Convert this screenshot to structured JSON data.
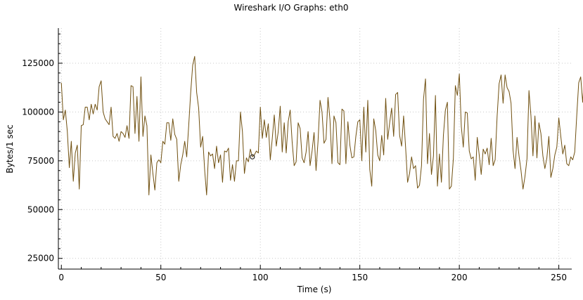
{
  "chart_data": {
    "type": "line",
    "title": "Wireshark I/O Graphs: eth0",
    "xlabel": "Time (s)",
    "ylabel": "Bytes/1 sec",
    "xlim": [
      -1.5,
      256.5
    ],
    "ylim": [
      19500,
      143000
    ],
    "xticks": [
      0,
      50,
      100,
      150,
      200,
      250
    ],
    "yticks": [
      25000,
      50000,
      75000,
      100000,
      125000
    ],
    "grid": true,
    "legend": "none",
    "series": [
      {
        "color": "#705010",
        "values": [
          115000,
          96000,
          101000,
          90000,
          71500,
          85000,
          64500,
          79000,
          83000,
          60500,
          93000,
          93500,
          102500,
          102500,
          96000,
          104000,
          99000,
          104000,
          101000,
          113000,
          116000,
          100000,
          96500,
          95000,
          93500,
          102500,
          87500,
          86500,
          89000,
          85000,
          90000,
          89000,
          87000,
          93000,
          86500,
          113500,
          113000,
          89000,
          108000,
          85000,
          118000,
          87500,
          98000,
          93000,
          57500,
          78000,
          68500,
          60000,
          74000,
          75500,
          74000,
          85000,
          83500,
          94500,
          94500,
          85500,
          96500,
          88500,
          86000,
          64500,
          73000,
          78000,
          85000,
          77000,
          93000,
          110000,
          124000,
          128500,
          110000,
          102000,
          82000,
          87500,
          70500,
          57500,
          79500,
          77500,
          78500,
          71000,
          82500,
          74000,
          78000,
          64000,
          80000,
          79500,
          81500,
          65000,
          73000,
          64500,
          75000,
          75000,
          100000,
          90000,
          68500,
          76500,
          74500,
          81000,
          77000,
          78000,
          80000,
          79000,
          102500,
          86500,
          96000,
          87000,
          94000,
          75500,
          86500,
          98500,
          82500,
          90000,
          103000,
          79500,
          94500,
          79000,
          95000,
          101000,
          84500,
          72500,
          74500,
          94500,
          91500,
          76500,
          74000,
          79500,
          90000,
          72500,
          80000,
          89500,
          70000,
          85000,
          106000,
          100000,
          84000,
          86000,
          107500,
          96000,
          73500,
          98000,
          94500,
          74000,
          73000,
          101500,
          100500,
          73500,
          95000,
          83000,
          76500,
          77000,
          87500,
          95000,
          96000,
          75000,
          102500,
          79500,
          106000,
          70500,
          62000,
          96500,
          90500,
          78000,
          75000,
          88000,
          78000,
          107000,
          86000,
          94500,
          102000,
          87500,
          109000,
          110000,
          88000,
          82500,
          98000,
          82000,
          64000,
          68500,
          77000,
          71000,
          72500,
          61000,
          62500,
          72500,
          106500,
          117000,
          73500,
          89000,
          68000,
          77500,
          108500,
          62000,
          78500,
          64000,
          88000,
          101000,
          105000,
          60500,
          62000,
          76000,
          113500,
          108500,
          119500,
          92500,
          82000,
          100000,
          99500,
          80000,
          76000,
          77000,
          65000,
          87000,
          78000,
          68000,
          81000,
          78500,
          81500,
          73000,
          86500,
          72500,
          75500,
          98000,
          114500,
          119000,
          104500,
          119000,
          112500,
          110500,
          104500,
          80500,
          71000,
          87000,
          77500,
          70000,
          60500,
          67000,
          76000,
          111000,
          98000,
          77500,
          98000,
          76500,
          94500,
          89000,
          77500,
          71000,
          76500,
          87500,
          66500,
          71000,
          78000,
          82000,
          97000,
          87500,
          78500,
          83000,
          73500,
          72500,
          77000,
          75500,
          79500,
          98000,
          115000,
          118000,
          105000,
          120000,
          98500,
          106500,
          111000,
          100000,
          76000,
          127000,
          88500,
          87500,
          97500,
          78000,
          76000,
          75500,
          101500,
          101500,
          96000,
          68500
        ]
      }
    ],
    "annotations": [
      {
        "x": 96,
        "y": 77000,
        "marker": "open-circle"
      }
    ]
  }
}
